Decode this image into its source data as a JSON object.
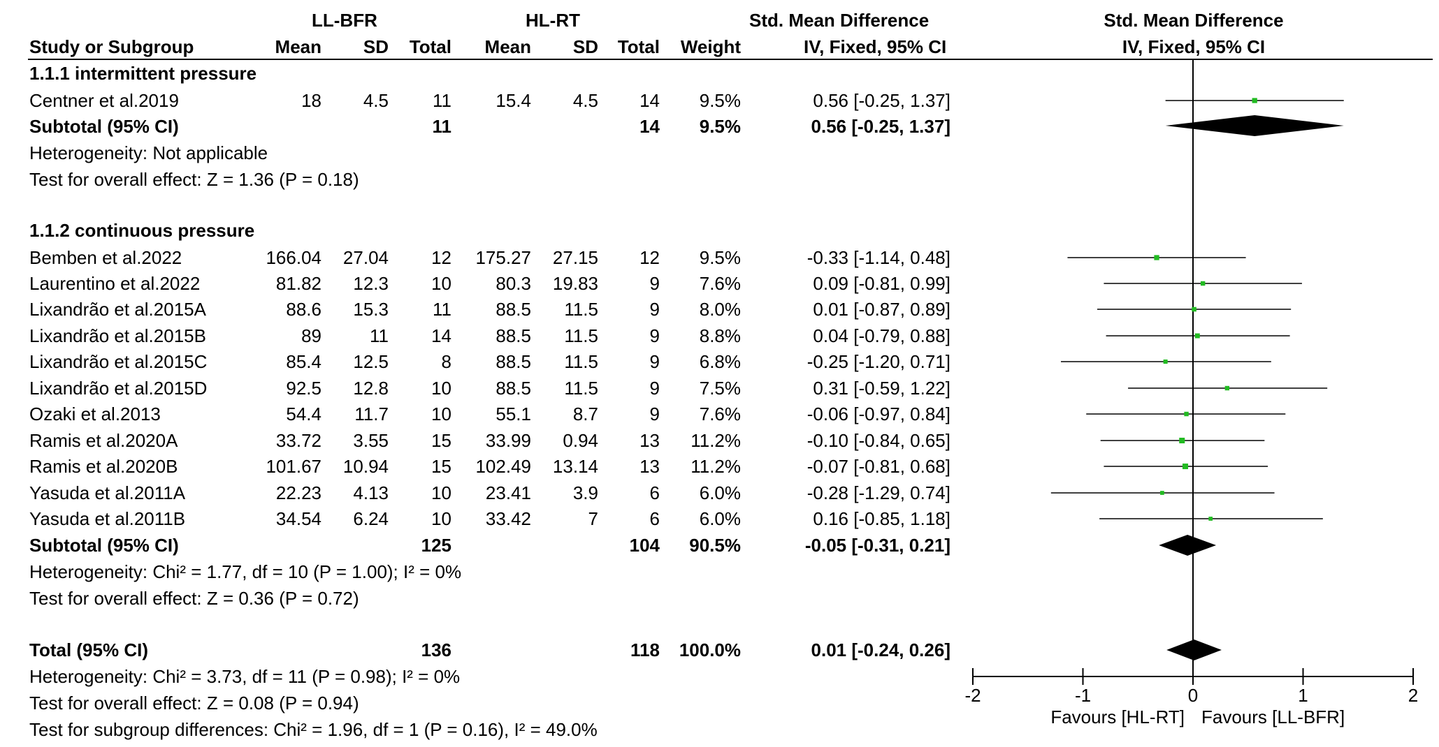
{
  "header": {
    "group1": "LL-BFR",
    "group2": "HL-RT",
    "smd_title": "Std. Mean Difference",
    "smd_method": "IV, Fixed, 95% CI",
    "plot_title": "Std. Mean Difference",
    "plot_method": "IV, Fixed, 95% CI",
    "columns": [
      "Study or Subgroup",
      "Mean",
      "SD",
      "Total",
      "Mean",
      "SD",
      "Total",
      "Weight"
    ]
  },
  "subgroups": [
    {
      "title": "1.1.1 intermittent pressure",
      "studies": [
        {
          "name": "Centner et al.2019",
          "m1": "18",
          "sd1": "4.5",
          "n1": "11",
          "m2": "15.4",
          "sd2": "4.5",
          "n2": "14",
          "weight": "9.5%",
          "ci": "0.56 [-0.25, 1.37]"
        }
      ],
      "subtotal": {
        "label": "Subtotal (95% CI)",
        "n1": "11",
        "n2": "14",
        "weight": "9.5%",
        "ci": "0.56 [-0.25, 1.37]"
      },
      "heterogeneity": "Heterogeneity: Not applicable",
      "overall": "Test for overall effect: Z = 1.36 (P = 0.18)"
    },
    {
      "title": "1.1.2 continuous pressure",
      "studies": [
        {
          "name": "Bemben et al.2022",
          "m1": "166.04",
          "sd1": "27.04",
          "n1": "12",
          "m2": "175.27",
          "sd2": "27.15",
          "n2": "12",
          "weight": "9.5%",
          "ci": "-0.33 [-1.14, 0.48]"
        },
        {
          "name": "Laurentino et al.2022",
          "m1": "81.82",
          "sd1": "12.3",
          "n1": "10",
          "m2": "80.3",
          "sd2": "19.83",
          "n2": "9",
          "weight": "7.6%",
          "ci": "0.09 [-0.81, 0.99]"
        },
        {
          "name": "Lixandrão et al.2015A",
          "m1": "88.6",
          "sd1": "15.3",
          "n1": "11",
          "m2": "88.5",
          "sd2": "11.5",
          "n2": "9",
          "weight": "8.0%",
          "ci": "0.01 [-0.87, 0.89]"
        },
        {
          "name": "Lixandrão et al.2015B",
          "m1": "89",
          "sd1": "11",
          "n1": "14",
          "m2": "88.5",
          "sd2": "11.5",
          "n2": "9",
          "weight": "8.8%",
          "ci": "0.04 [-0.79, 0.88]"
        },
        {
          "name": "Lixandrão et al.2015C",
          "m1": "85.4",
          "sd1": "12.5",
          "n1": "8",
          "m2": "88.5",
          "sd2": "11.5",
          "n2": "9",
          "weight": "6.8%",
          "ci": "-0.25 [-1.20, 0.71]"
        },
        {
          "name": "Lixandrão et al.2015D",
          "m1": "92.5",
          "sd1": "12.8",
          "n1": "10",
          "m2": "88.5",
          "sd2": "11.5",
          "n2": "9",
          "weight": "7.5%",
          "ci": "0.31 [-0.59, 1.22]"
        },
        {
          "name": "Ozaki et al.2013",
          "m1": "54.4",
          "sd1": "11.7",
          "n1": "10",
          "m2": "55.1",
          "sd2": "8.7",
          "n2": "9",
          "weight": "7.6%",
          "ci": "-0.06 [-0.97, 0.84]"
        },
        {
          "name": "Ramis et al.2020A",
          "m1": "33.72",
          "sd1": "3.55",
          "n1": "15",
          "m2": "33.99",
          "sd2": "0.94",
          "n2": "13",
          "weight": "11.2%",
          "ci": "-0.10 [-0.84, 0.65]"
        },
        {
          "name": "Ramis et al.2020B",
          "m1": "101.67",
          "sd1": "10.94",
          "n1": "15",
          "m2": "102.49",
          "sd2": "13.14",
          "n2": "13",
          "weight": "11.2%",
          "ci": "-0.07 [-0.81, 0.68]"
        },
        {
          "name": "Yasuda et al.2011A",
          "m1": "22.23",
          "sd1": "4.13",
          "n1": "10",
          "m2": "23.41",
          "sd2": "3.9",
          "n2": "6",
          "weight": "6.0%",
          "ci": "-0.28 [-1.29, 0.74]"
        },
        {
          "name": "Yasuda et al.2011B",
          "m1": "34.54",
          "sd1": "6.24",
          "n1": "10",
          "m2": "33.42",
          "sd2": "7",
          "n2": "6",
          "weight": "6.0%",
          "ci": "0.16 [-0.85, 1.18]"
        }
      ],
      "subtotal": {
        "label": "Subtotal (95% CI)",
        "n1": "125",
        "n2": "104",
        "weight": "90.5%",
        "ci": "-0.05 [-0.31, 0.21]"
      },
      "heterogeneity": "Heterogeneity: Chi² = 1.77, df = 10 (P = 1.00); I² = 0%",
      "overall": "Test for overall effect: Z = 0.36 (P = 0.72)"
    }
  ],
  "total": {
    "label": "Total (95% CI)",
    "n1": "136",
    "n2": "118",
    "weight": "100.0%",
    "ci": "0.01 [-0.24, 0.26]",
    "heterogeneity": "Heterogeneity: Chi² = 3.73, df = 11 (P = 0.98); I² = 0%",
    "overall": "Test for overall effect: Z = 0.08 (P = 0.94)",
    "subgroup_diff": "Test for subgroup differences: Chi² = 1.96, df = 1 (P = 0.16), I² = 49.0%"
  },
  "chart_data": {
    "type": "forest",
    "title": "Std. Mean Difference",
    "subtitle": "IV, Fixed, 95% CI",
    "xlim": [
      -2,
      2
    ],
    "xticks": [
      "-2",
      "-1",
      "0",
      "1",
      "2"
    ],
    "xtick_values": [
      -2,
      -1,
      0,
      1,
      2
    ],
    "favours_left": "Favours [HL-RT]",
    "favours_right": "Favours [LL-BFR]",
    "marker_color": "#22bb22",
    "diamond_color": "#000000",
    "studies": [
      {
        "name": "Centner et al.2019",
        "est": 0.56,
        "lo": -0.25,
        "hi": 1.37,
        "weight": 9.5
      },
      {
        "name": "Bemben et al.2022",
        "est": -0.33,
        "lo": -1.14,
        "hi": 0.48,
        "weight": 9.5
      },
      {
        "name": "Laurentino et al.2022",
        "est": 0.09,
        "lo": -0.81,
        "hi": 0.99,
        "weight": 7.6
      },
      {
        "name": "Lixandrão et al.2015A",
        "est": 0.01,
        "lo": -0.87,
        "hi": 0.89,
        "weight": 8.0
      },
      {
        "name": "Lixandrão et al.2015B",
        "est": 0.04,
        "lo": -0.79,
        "hi": 0.88,
        "weight": 8.8
      },
      {
        "name": "Lixandrão et al.2015C",
        "est": -0.25,
        "lo": -1.2,
        "hi": 0.71,
        "weight": 6.8
      },
      {
        "name": "Lixandrão et al.2015D",
        "est": 0.31,
        "lo": -0.59,
        "hi": 1.22,
        "weight": 7.5
      },
      {
        "name": "Ozaki et al.2013",
        "est": -0.06,
        "lo": -0.97,
        "hi": 0.84,
        "weight": 7.6
      },
      {
        "name": "Ramis et al.2020A",
        "est": -0.1,
        "lo": -0.84,
        "hi": 0.65,
        "weight": 11.2
      },
      {
        "name": "Ramis et al.2020B",
        "est": -0.07,
        "lo": -0.81,
        "hi": 0.68,
        "weight": 11.2
      },
      {
        "name": "Yasuda et al.2011A",
        "est": -0.28,
        "lo": -1.29,
        "hi": 0.74,
        "weight": 6.0
      },
      {
        "name": "Yasuda et al.2011B",
        "est": 0.16,
        "lo": -0.85,
        "hi": 1.18,
        "weight": 6.0
      }
    ],
    "diamonds": [
      {
        "name": "Subtotal 1.1.1",
        "est": 0.56,
        "lo": -0.25,
        "hi": 1.37
      },
      {
        "name": "Subtotal 1.1.2",
        "est": -0.05,
        "lo": -0.31,
        "hi": 0.21
      },
      {
        "name": "Total",
        "est": 0.01,
        "lo": -0.24,
        "hi": 0.26
      }
    ]
  }
}
